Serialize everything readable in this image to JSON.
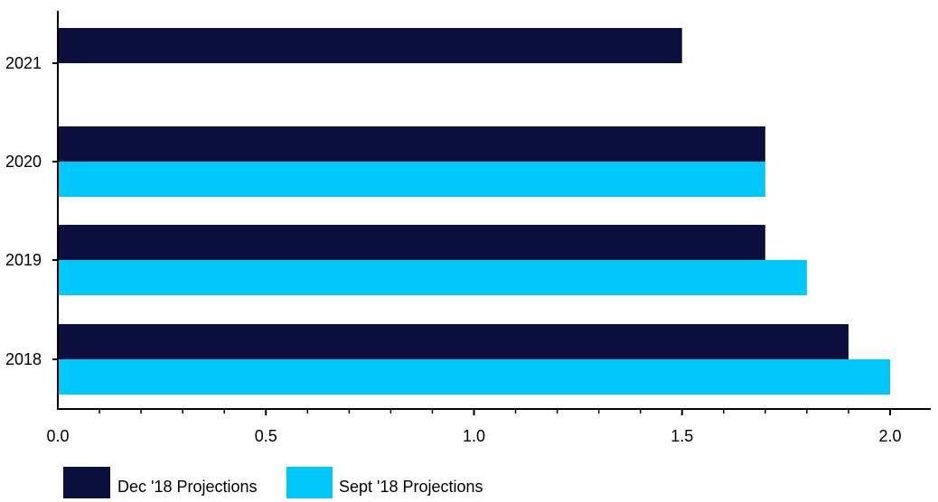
{
  "chart_data": {
    "type": "bar",
    "orientation": "horizontal",
    "categories": [
      "2021",
      "2020",
      "2019",
      "2018"
    ],
    "series": [
      {
        "name": "Dec '18 Projections",
        "color": "#0a0f3d",
        "values": [
          1.5,
          1.7,
          1.7,
          1.9
        ]
      },
      {
        "name": "Sept '18 Projections",
        "color": "#00c8fb",
        "values": [
          null,
          1.7,
          1.8,
          2.0
        ]
      }
    ],
    "xlim": [
      0,
      2.1
    ],
    "x_ticks": [
      "0.0",
      "0.5",
      "1.0",
      "1.5",
      "2.0"
    ],
    "x_tick_values": [
      0,
      0.5,
      1.0,
      1.5,
      2.0
    ],
    "title": "",
    "xlabel": "",
    "ylabel": "",
    "grid": false,
    "legend_position": "bottom-left"
  }
}
